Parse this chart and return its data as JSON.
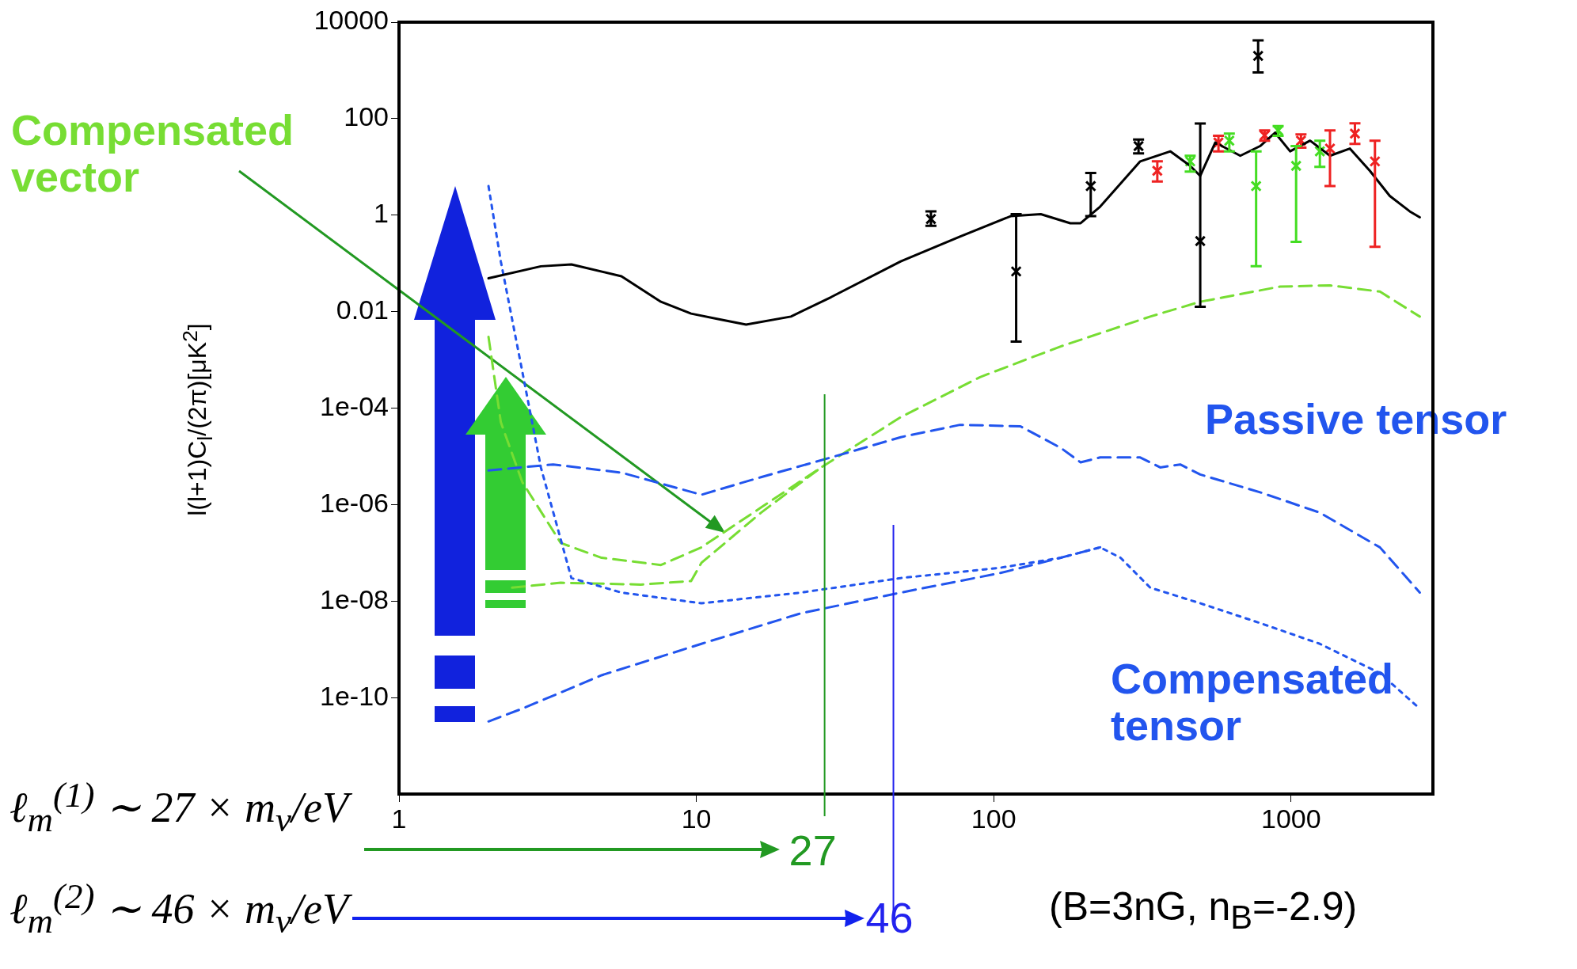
{
  "chart_data": {
    "type": "line",
    "ylabel": "l(l+1)C$_{l}$/(2π)[μK$^{2}$]",
    "log": "xy",
    "grid": false,
    "legend": false,
    "xlim": [
      1,
      3000
    ],
    "ylim": [
      1e-12,
      10000
    ],
    "xticks": [
      1,
      10,
      100,
      1000
    ],
    "yticks": [
      10000,
      100,
      1,
      0.01,
      {
        "value": 0.0001,
        "label": "1e-04"
      },
      {
        "value": 1e-06,
        "label": "1e-06"
      },
      {
        "value": 1e-08,
        "label": "1e-08"
      },
      {
        "value": 1e-10,
        "label": "1e-10"
      }
    ],
    "series": [
      {
        "color": "#000000",
        "line_style": "solid",
        "marker": "none",
        "x": [
          2,
          3,
          3.8,
          5.6,
          7.6,
          9.6,
          12.1,
          14.7,
          20.8,
          28.4,
          48.7,
          77,
          114,
          144,
          181,
          196,
          228,
          311,
          393,
          458,
          495,
          556,
          675,
          787,
          884,
          993,
          1159,
          1352,
          1578,
          1841,
          2148,
          2506,
          2710
        ],
        "values": [
          0.049,
          0.087,
          0.095,
          0.054,
          0.016,
          0.0091,
          0.0068,
          0.0054,
          0.0079,
          0.02,
          0.11,
          0.36,
          0.95,
          1.05,
          0.68,
          0.68,
          1.5,
          13,
          21,
          10.5,
          6.5,
          32,
          17,
          27,
          51,
          21,
          35,
          17,
          24,
          8.3,
          2.5,
          1.2,
          0.9
        ]
      },
      {
        "name": "Compensated tensor",
        "color": "#2255ee",
        "line_style": "dotted",
        "marker": "none",
        "x": [
          2,
          2.2,
          2.6,
          3,
          3.8,
          5.6,
          10.4,
          22.5,
          48.7,
          105,
          168,
          228,
          267,
          336,
          495,
          787,
          1250,
          1990,
          2710
        ],
        "values": [
          4,
          0.11,
          0.00056,
          5.9e-06,
          3e-08,
          1.5e-08,
          9e-09,
          1.5e-08,
          3e-08,
          4.9e-08,
          7.9e-08,
          1.3e-07,
          7.9e-08,
          1.9e-08,
          9e-09,
          3.5e-09,
          1.3e-09,
          3.2e-10,
          5.9e-11
        ]
      },
      {
        "color": "#2255ee",
        "line_style": "dashed",
        "marker": "none",
        "x": [
          2,
          2.6,
          4.8,
          10.4,
          22.5,
          48.7,
          105,
          168,
          228
        ],
        "values": [
          3.2e-11,
          5.9e-11,
          2.9e-10,
          1.3e-09,
          5.6e-09,
          1.5e-08,
          3.8e-08,
          7.9e-08,
          1.3e-07
        ]
      },
      {
        "name": "Passive tensor",
        "color": "#2255ee",
        "line_style": "dashed",
        "marker": "none",
        "x": [
          2,
          3.3,
          5.6,
          10.4,
          16.5,
          28.4,
          48.7,
          77,
          123,
          168,
          196,
          228,
          311,
          363,
          424,
          495,
          787,
          1250,
          1990,
          2710
        ],
        "values": [
          5.1e-06,
          6.8e-06,
          4.6e-06,
          1.6e-06,
          3.7e-06,
          9.5e-06,
          2.5e-05,
          4.5e-05,
          4.2e-05,
          1.5e-05,
          7.5e-06,
          9.5e-06,
          9.5e-06,
          5.9e-06,
          6.8e-06,
          4.2e-06,
          1.8e-06,
          6.8e-07,
          1.3e-07,
          1.5e-08
        ]
      },
      {
        "name": "Compensated vector",
        "color": "#77dd33",
        "line_style": "dashed",
        "marker": "none",
        "x": [
          2,
          2.2,
          2.6,
          3.5,
          4.8,
          7.6,
          10.4,
          16.5,
          26.3,
          48.7,
          90,
          168,
          336,
          495,
          918,
          1352,
          1990,
          2710
        ],
        "values": [
          0.003,
          5.1e-05,
          2.9e-06,
          1.6e-07,
          7.9e-08,
          5.6e-08,
          1.3e-07,
          8.7e-07,
          5.9e-06,
          6.5e-05,
          0.00044,
          0.0019,
          0.0079,
          0.016,
          0.033,
          0.035,
          0.026,
          0.0079
        ]
      },
      {
        "color": "#77dd33",
        "line_style": "dashed",
        "marker": "none",
        "x": [
          2.4,
          3.5,
          6.5,
          9.6,
          10.4,
          16.5,
          26.3
        ],
        "values": [
          1.9e-08,
          2.4e-08,
          2.2e-08,
          2.6e-08,
          6.2e-08,
          6.8e-07,
          5.9e-06
        ]
      },
      {
        "type": "scatter",
        "color": "#000000",
        "marker": "cross",
        "x": [
          61.5,
          119,
          212,
          307,
          495,
          775
        ],
        "values": [
          0.83,
          0.068,
          4,
          27,
          0.29,
          2000
        ],
        "errors": [
          [
            0.6,
            1.2
          ],
          [
            0.0024,
            1.05
          ],
          [
            0.95,
            7.5
          ],
          [
            19,
            37
          ],
          [
            0.0126,
            79
          ],
          [
            910,
            4200
          ]
        ]
      },
      {
        "type": "scatter",
        "color": "#ee2222",
        "marker": "cross",
        "x": [
          355,
          570,
          815,
          1080,
          1352,
          1640,
          1915
        ],
        "values": [
          8.3,
          32,
          45,
          35,
          24,
          49,
          13
        ],
        "errors": [
          [
            5,
            13
          ],
          [
            21,
            44
          ],
          [
            35,
            57
          ],
          [
            25,
            47
          ],
          [
            4,
            57
          ],
          [
            30,
            80
          ],
          [
            0.22,
            35
          ]
        ]
      },
      {
        "type": "scatter",
        "color": "#44dd22",
        "marker": "cross",
        "x": [
          458,
          620,
          763,
          905,
          1040,
          1250
        ],
        "values": [
          13,
          35,
          4,
          57,
          10.5,
          21
        ],
        "errors": [
          [
            8,
            17
          ],
          [
            21,
            49
          ],
          [
            0.087,
            21
          ],
          [
            44,
            70
          ],
          [
            0.28,
            27
          ],
          [
            10,
            35
          ]
        ]
      }
    ],
    "ref_lines": [
      {
        "axis": "x",
        "value": 27,
        "label": "27",
        "color": "#229922"
      },
      {
        "axis": "x",
        "value": 46,
        "label": "46",
        "color": "#2222ee"
      }
    ],
    "annotations": [
      "ℓ$_{m}$$^{(1)}$ ∼ 27 × m$_{ν}$/eV",
      "ℓ$_{m}$$^{(2)}$ ∼ 46 × m$_{ν}$/eV",
      "(B=3nG, n$_{B}$=-2.9)"
    ]
  }
}
